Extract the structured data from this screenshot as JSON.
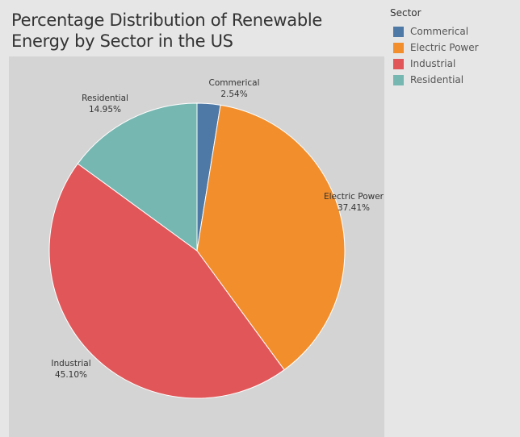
{
  "chart_data": {
    "type": "pie",
    "title": "Percentage Distribution of Renewable Energy by Sector in the US",
    "legend_title": "Sector",
    "legend_position": "top-right",
    "categories": [
      "Commerical",
      "Electric Power",
      "Industrial",
      "Residential"
    ],
    "values": [
      2.54,
      37.41,
      45.1,
      14.95
    ],
    "value_labels": [
      "2.54%",
      "37.41%",
      "45.10%",
      "14.95%"
    ],
    "colors": [
      "#4e79a7",
      "#f28e2b",
      "#e15759",
      "#76b7b2"
    ]
  }
}
